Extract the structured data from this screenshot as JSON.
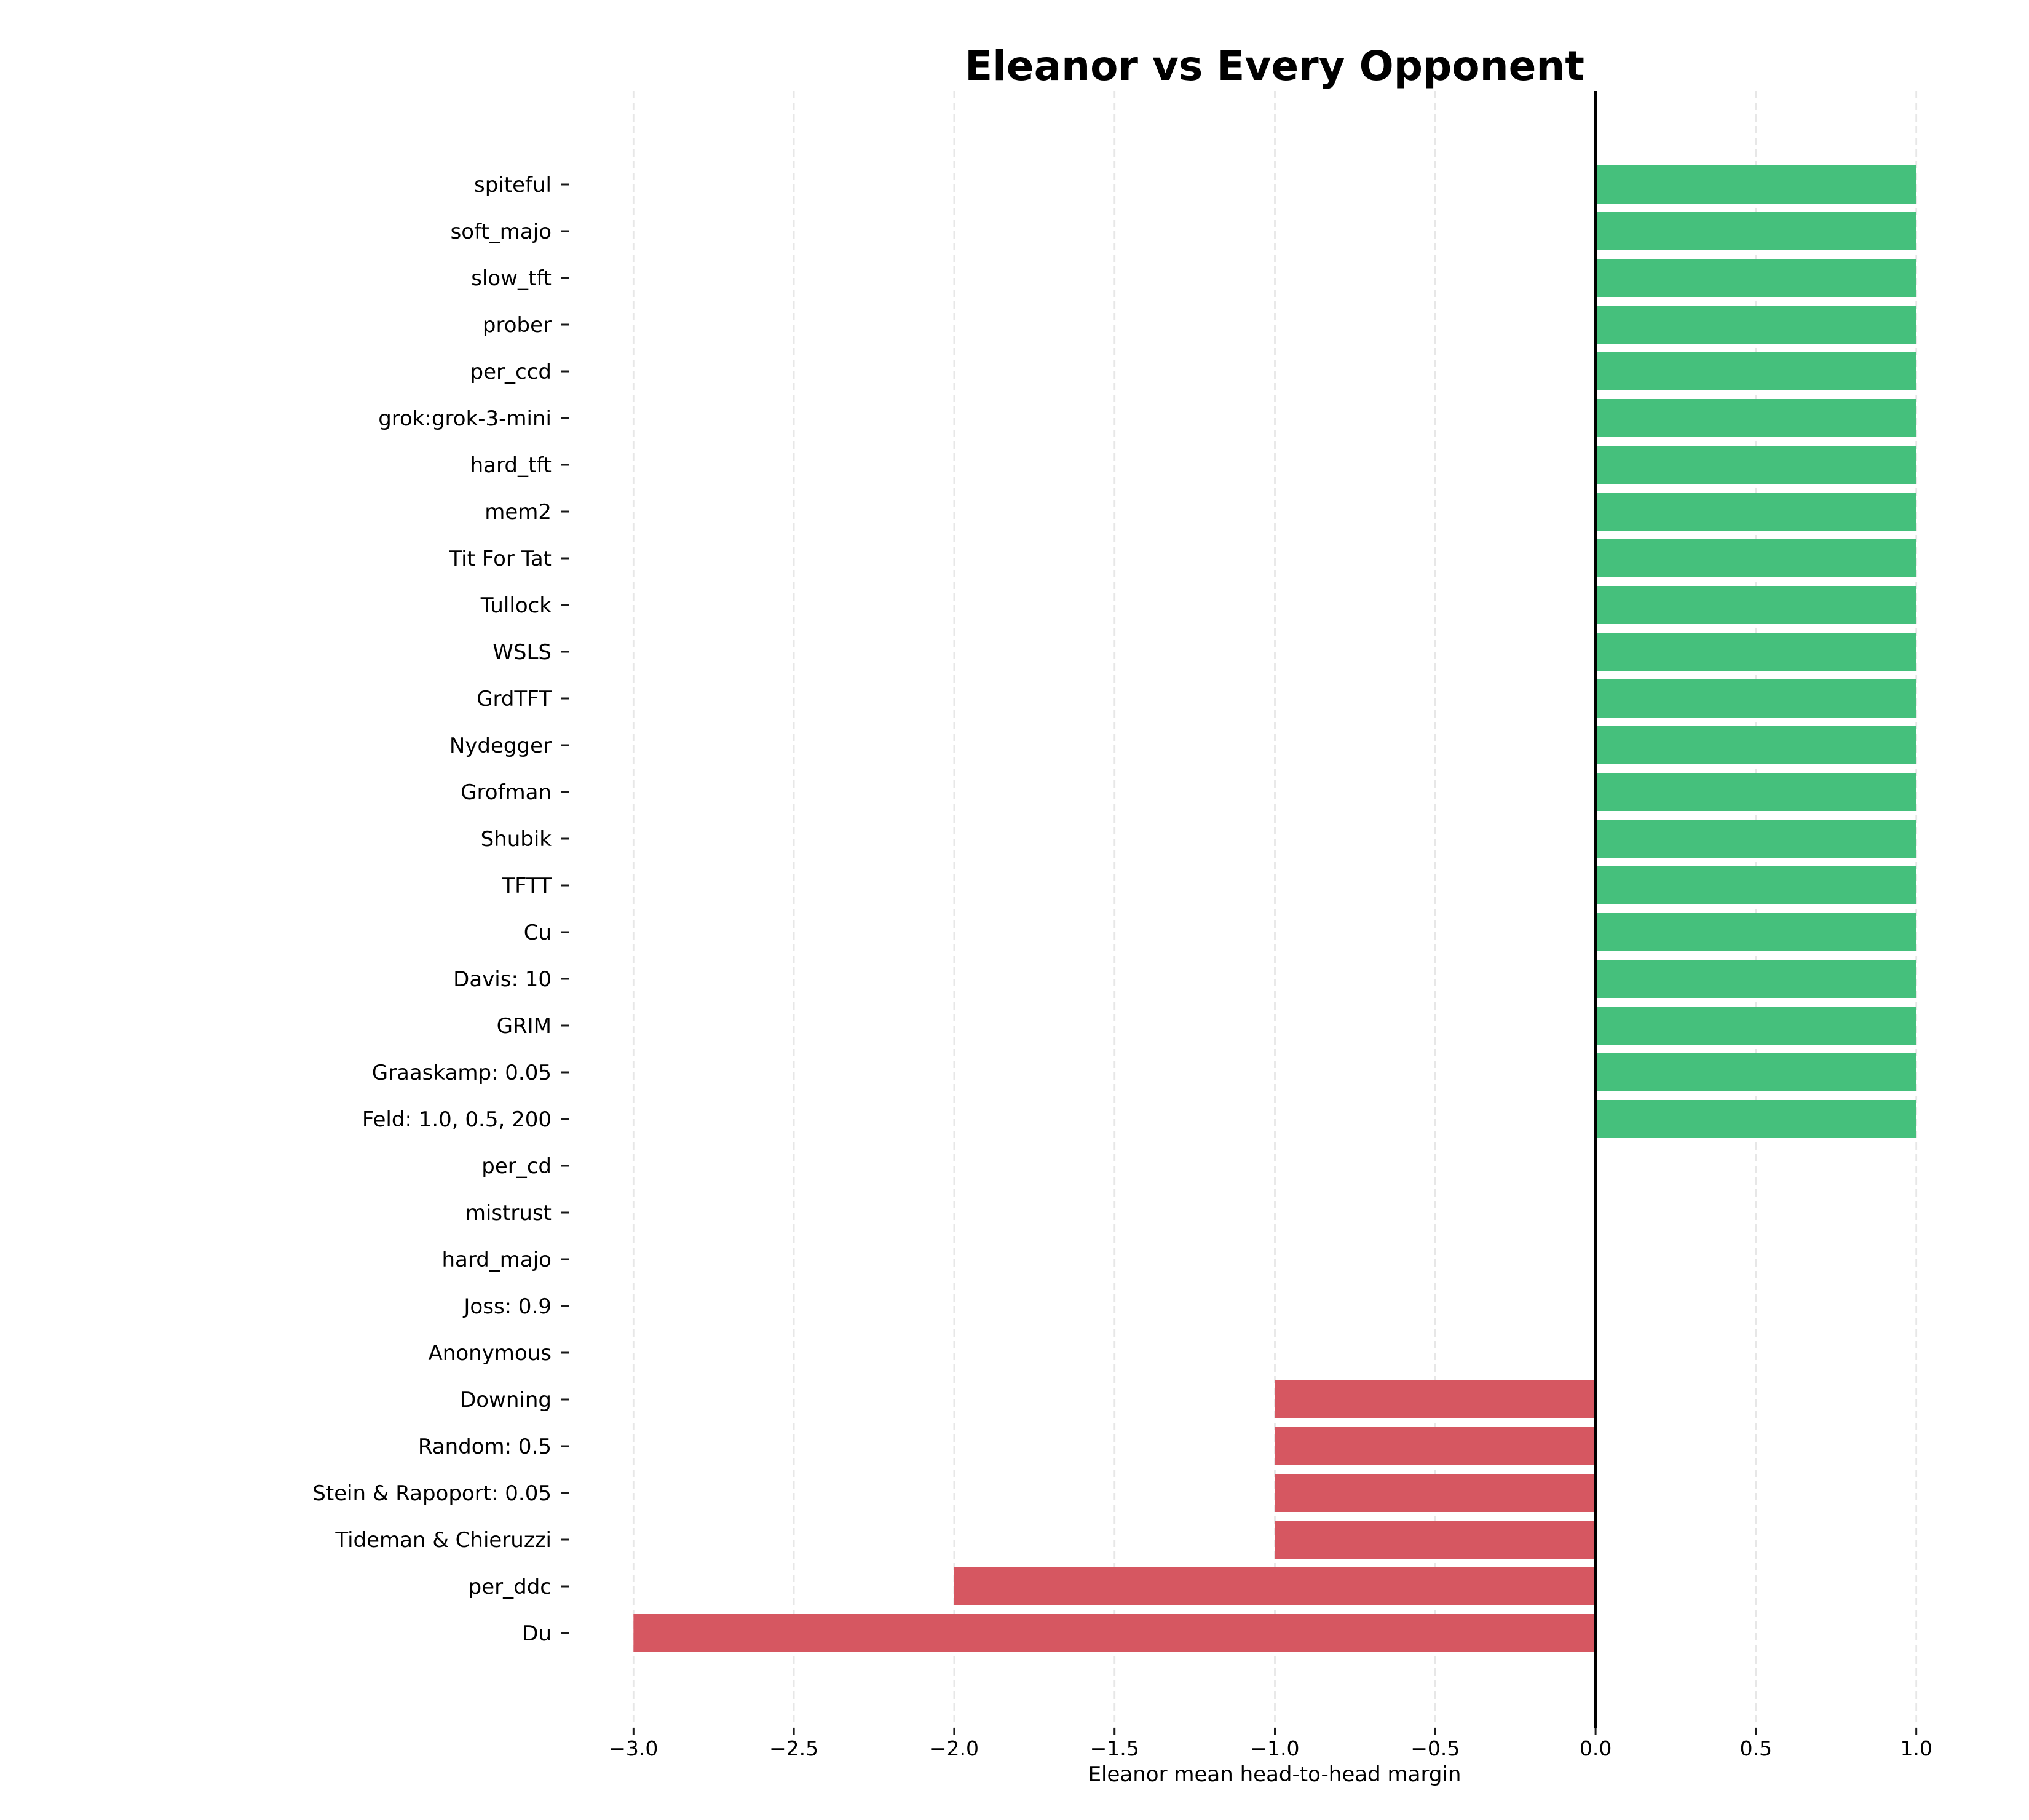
{
  "figure": {
    "background": "#ffffff"
  },
  "chart_data": {
    "type": "bar",
    "orientation": "horizontal",
    "title": "Eleanor vs Every Opponent",
    "xlabel": "Eleanor mean head-to-head margin",
    "ylabel": "",
    "categories": [
      "spiteful",
      "soft_majo",
      "slow_tft",
      "prober",
      "per_ccd",
      "grok:grok-3-mini",
      "hard_tft",
      "mem2",
      "Tit For Tat",
      "Tullock",
      "WSLS",
      "GrdTFT",
      "Nydegger",
      "Grofman",
      "Shubik",
      "TFTT",
      "Cu",
      "Davis: 10",
      "GRIM",
      "Graaskamp: 0.05",
      "Feld: 1.0, 0.5, 200",
      "per_cd",
      "mistrust",
      "hard_majo",
      "Joss: 0.9",
      "Anonymous",
      "Downing",
      "Random: 0.5",
      "Stein & Rapoport: 0.05",
      "Tideman & Chieruzzi",
      "per_ddc",
      "Du"
    ],
    "values": [
      1.0,
      1.0,
      1.0,
      1.0,
      1.0,
      1.0,
      1.0,
      1.0,
      1.0,
      1.0,
      1.0,
      1.0,
      1.0,
      1.0,
      1.0,
      1.0,
      1.0,
      1.0,
      1.0,
      1.0,
      1.0,
      0.0,
      0.0,
      0.0,
      0.0,
      0.0,
      -1.0,
      -1.0,
      -1.0,
      -1.0,
      -2.0,
      -3.0
    ],
    "xlim": [
      -3.2,
      1.2
    ],
    "x_ticks": [
      -3.0,
      -2.5,
      -2.0,
      -1.5,
      -1.0,
      -0.5,
      0.0,
      0.5,
      1.0
    ],
    "x_tick_labels": [
      "−3.0",
      "−2.5",
      "−2.0",
      "−1.5",
      "−1.0",
      "−0.5",
      "0.0",
      "0.5",
      "1.0"
    ],
    "grid": true,
    "legend": "none",
    "zero_line": true,
    "colors": {
      "positive_bar": "#45c07c",
      "negative_bar": "#d65761",
      "zero_line": "#000000",
      "grid_line": "#e7e7e7",
      "tick_mark": "#1a1a1a",
      "text": "#000000"
    }
  }
}
